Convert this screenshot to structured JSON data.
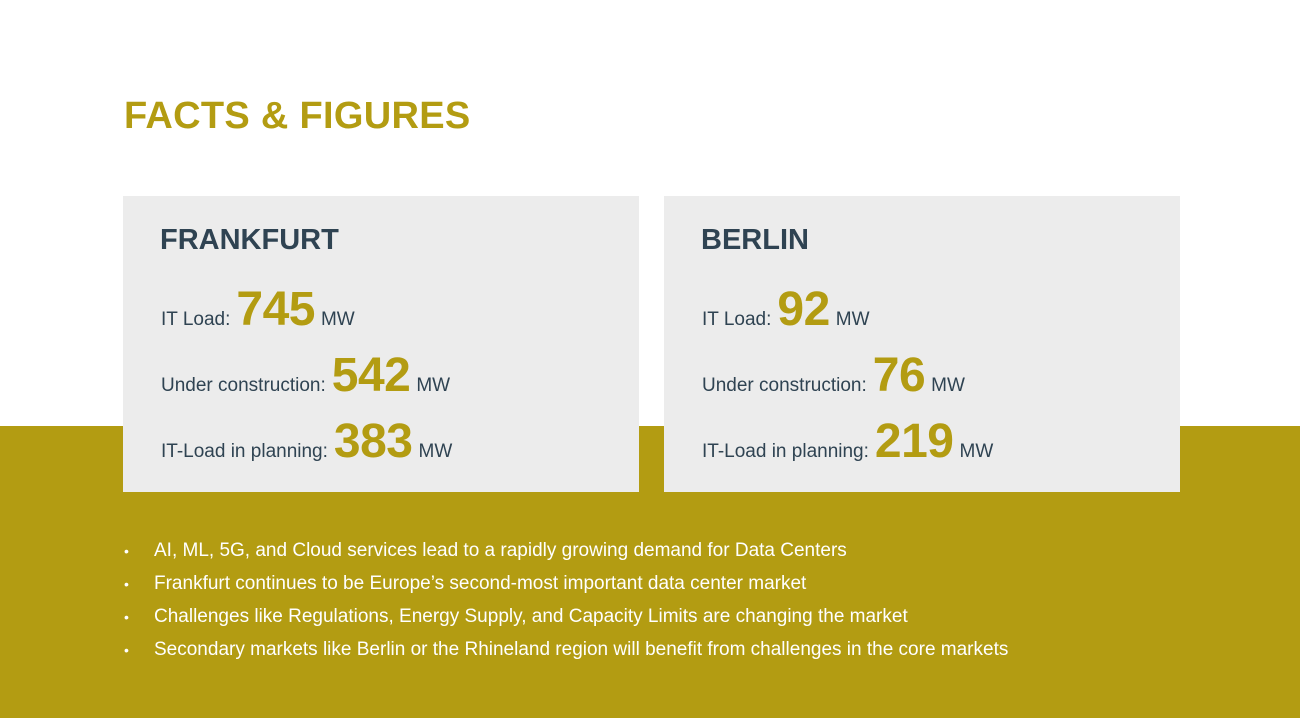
{
  "title": "FACTS & FIGURES",
  "cities": [
    {
      "name": "FRANKFURT",
      "stats": [
        {
          "label": "IT Load:",
          "value": "745",
          "unit": "MW"
        },
        {
          "label": "Under construction:",
          "value": "542",
          "unit": "MW"
        },
        {
          "label": "IT-Load in planning:",
          "value": "383",
          "unit": "MW"
        }
      ]
    },
    {
      "name": "BERLIN",
      "stats": [
        {
          "label": "IT Load:",
          "value": "92",
          "unit": "MW"
        },
        {
          "label": "Under construction:",
          "value": "76",
          "unit": "MW"
        },
        {
          "label": "IT-Load in planning:",
          "value": "219",
          "unit": "MW"
        }
      ]
    }
  ],
  "bullets": [
    "AI, ML, 5G, and Cloud services lead to a rapidly growing demand for Data Centers",
    "Frankfurt continues to be Europe’s second-most important data center market",
    "Challenges like Regulations, Energy Supply, and Capacity Limits are changing the market",
    "Secondary markets like Berlin or the Rhineland region will benefit from challenges in the core markets"
  ],
  "colors": {
    "accent": "#b39c12",
    "card_background": "#ececec",
    "heading_text": "#2f4352"
  }
}
